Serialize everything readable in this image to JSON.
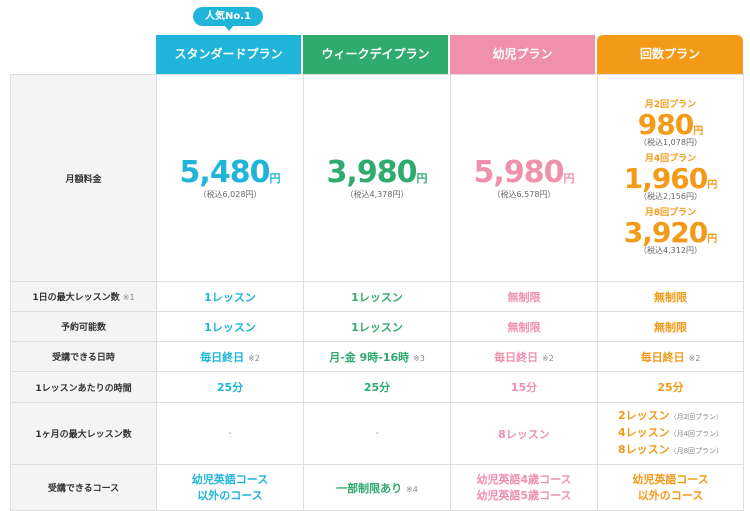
{
  "badge": "人気No.1",
  "plans": [
    {
      "key": "s",
      "name": "スタンダードプラン",
      "color": "#1fb4d8"
    },
    {
      "key": "w",
      "name": "ウィークデイプラン",
      "color": "#2fab6e"
    },
    {
      "key": "k",
      "name": "幼児プラン",
      "color": "#ef90ad"
    },
    {
      "key": "c",
      "name": "回数プラン",
      "color": "#f39a19"
    }
  ],
  "monthly": {
    "label": "月額料金",
    "unit": "円",
    "standard": {
      "price": "5,480",
      "tax": "（税込6,028円）"
    },
    "weekday": {
      "price": "3,980",
      "tax": "（税込4,378円）"
    },
    "kids": {
      "price": "5,980",
      "tax": "（税込6,578円）"
    },
    "count": [
      {
        "name": "月2回プラン",
        "price": "980",
        "tax": "（税込1,078円）"
      },
      {
        "name": "月4回プラン",
        "price": "1,960",
        "tax": "（税込2,156円）"
      },
      {
        "name": "月8回プラン",
        "price": "3,920",
        "tax": "（税込4,312円）"
      }
    ]
  },
  "rows": {
    "max_daily": {
      "label": "1日の最大レッスン数",
      "note": "※1",
      "s": "1レッスン",
      "w": "1レッスン",
      "k": "無制限",
      "c": "無制限"
    },
    "booking": {
      "label": "予約可能数",
      "s": "1レッスン",
      "w": "1レッスン",
      "k": "無制限",
      "c": "無制限"
    },
    "schedule": {
      "label": "受講できる日時",
      "s": "毎日終日",
      "s_note": "※2",
      "w": "月-金 9時-16時",
      "w_note": "※3",
      "k": "毎日終日",
      "k_note": "※2",
      "c": "毎日終日",
      "c_note": "※2"
    },
    "duration": {
      "label": "1レッスンあたりの時間",
      "s": "25分",
      "w": "25分",
      "k": "15分",
      "c": "25分"
    },
    "monthly_max": {
      "label": "1ヶ月の最大レッスン数",
      "s": "-",
      "w": "-",
      "k": "8レッスン",
      "c": [
        {
          "v": "2レッスン",
          "sub": "（月2回プラン）"
        },
        {
          "v": "4レッスン",
          "sub": "（月4回プラン）"
        },
        {
          "v": "8レッスン",
          "sub": "（月8回プラン）"
        }
      ]
    },
    "courses": {
      "label": "受講できるコース",
      "s": [
        "幼児英語コース",
        "以外のコース"
      ],
      "w": "一部制限あり",
      "w_note": "※4",
      "k": [
        "幼児英語4歳コース",
        "幼児英語5歳コース"
      ],
      "c": [
        "幼児英語コース",
        "以外のコース"
      ]
    }
  }
}
